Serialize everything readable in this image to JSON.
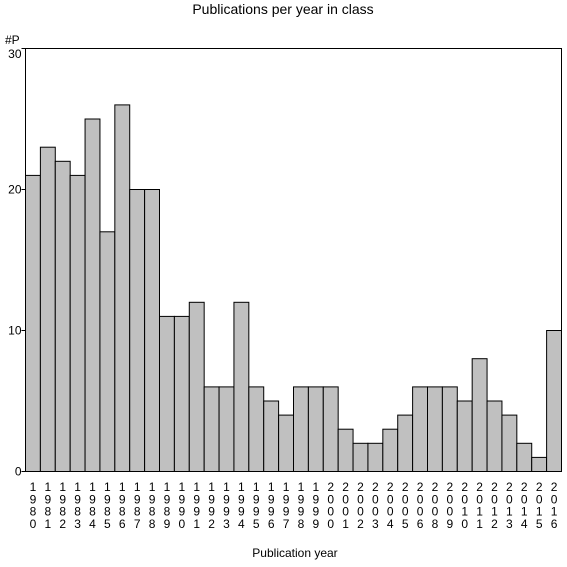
{
  "chart_data": {
    "type": "bar",
    "title": "Publications per year in class",
    "ylabel": "#P",
    "xlabel": "Publication year",
    "ylim": [
      0,
      30
    ],
    "yticks": [
      "0",
      "10",
      "20",
      "30"
    ],
    "grid": false,
    "bar_color": "#c0c0c0",
    "categories": [
      "1980",
      "1981",
      "1982",
      "1983",
      "1984",
      "1985",
      "1986",
      "1987",
      "1988",
      "1989",
      "1990",
      "1991",
      "1992",
      "1993",
      "1994",
      "1995",
      "1996",
      "1997",
      "1998",
      "1999",
      "2000",
      "2001",
      "2002",
      "2003",
      "2004",
      "2005",
      "2006",
      "2008",
      "2009",
      "2010",
      "2011",
      "2012",
      "2013",
      "2014",
      "2015",
      "2016"
    ],
    "tick_labels": [
      "1\n9\n8\n0",
      "1\n9\n8\n1",
      "1\n9\n8\n2",
      "1\n9\n8\n3",
      "1\n9\n8\n4",
      "1\n9\n8\n5",
      "1\n9\n8\n6",
      "1\n9\n8\n7",
      "1\n9\n8\n8",
      "1\n9\n8\n9",
      "1\n9\n9\n0",
      "1\n9\n9\n1",
      "1\n9\n9\n2",
      "1\n9\n9\n3",
      "1\n9\n9\n4",
      "1\n9\n9\n5",
      "1\n9\n9\n6",
      "1\n9\n9\n7",
      "1\n9\n9\n8",
      "1\n9\n9\n9",
      "2\n0\n0\n0",
      "2\n0\n0\n1",
      "2\n0\n0\n2",
      "2\n0\n0\n3",
      "2\n0\n0\n4",
      "2\n0\n0\n5",
      "2\n0\n0\n6",
      "2\n0\n0\n8",
      "2\n0\n0\n9",
      "2\n0\n1\n0",
      "2\n0\n1\n1",
      "2\n0\n1\n2",
      "2\n0\n1\n3",
      "2\n0\n1\n4",
      "2\n0\n1\n5",
      "2\n0\n1\n6"
    ],
    "values": [
      21,
      23,
      22,
      21,
      25,
      17,
      26,
      20,
      20,
      11,
      11,
      12,
      6,
      6,
      12,
      6,
      5,
      4,
      6,
      6,
      6,
      3,
      2,
      2,
      3,
      4,
      6,
      6,
      6,
      5,
      8,
      5,
      4,
      2,
      1,
      10
    ]
  }
}
